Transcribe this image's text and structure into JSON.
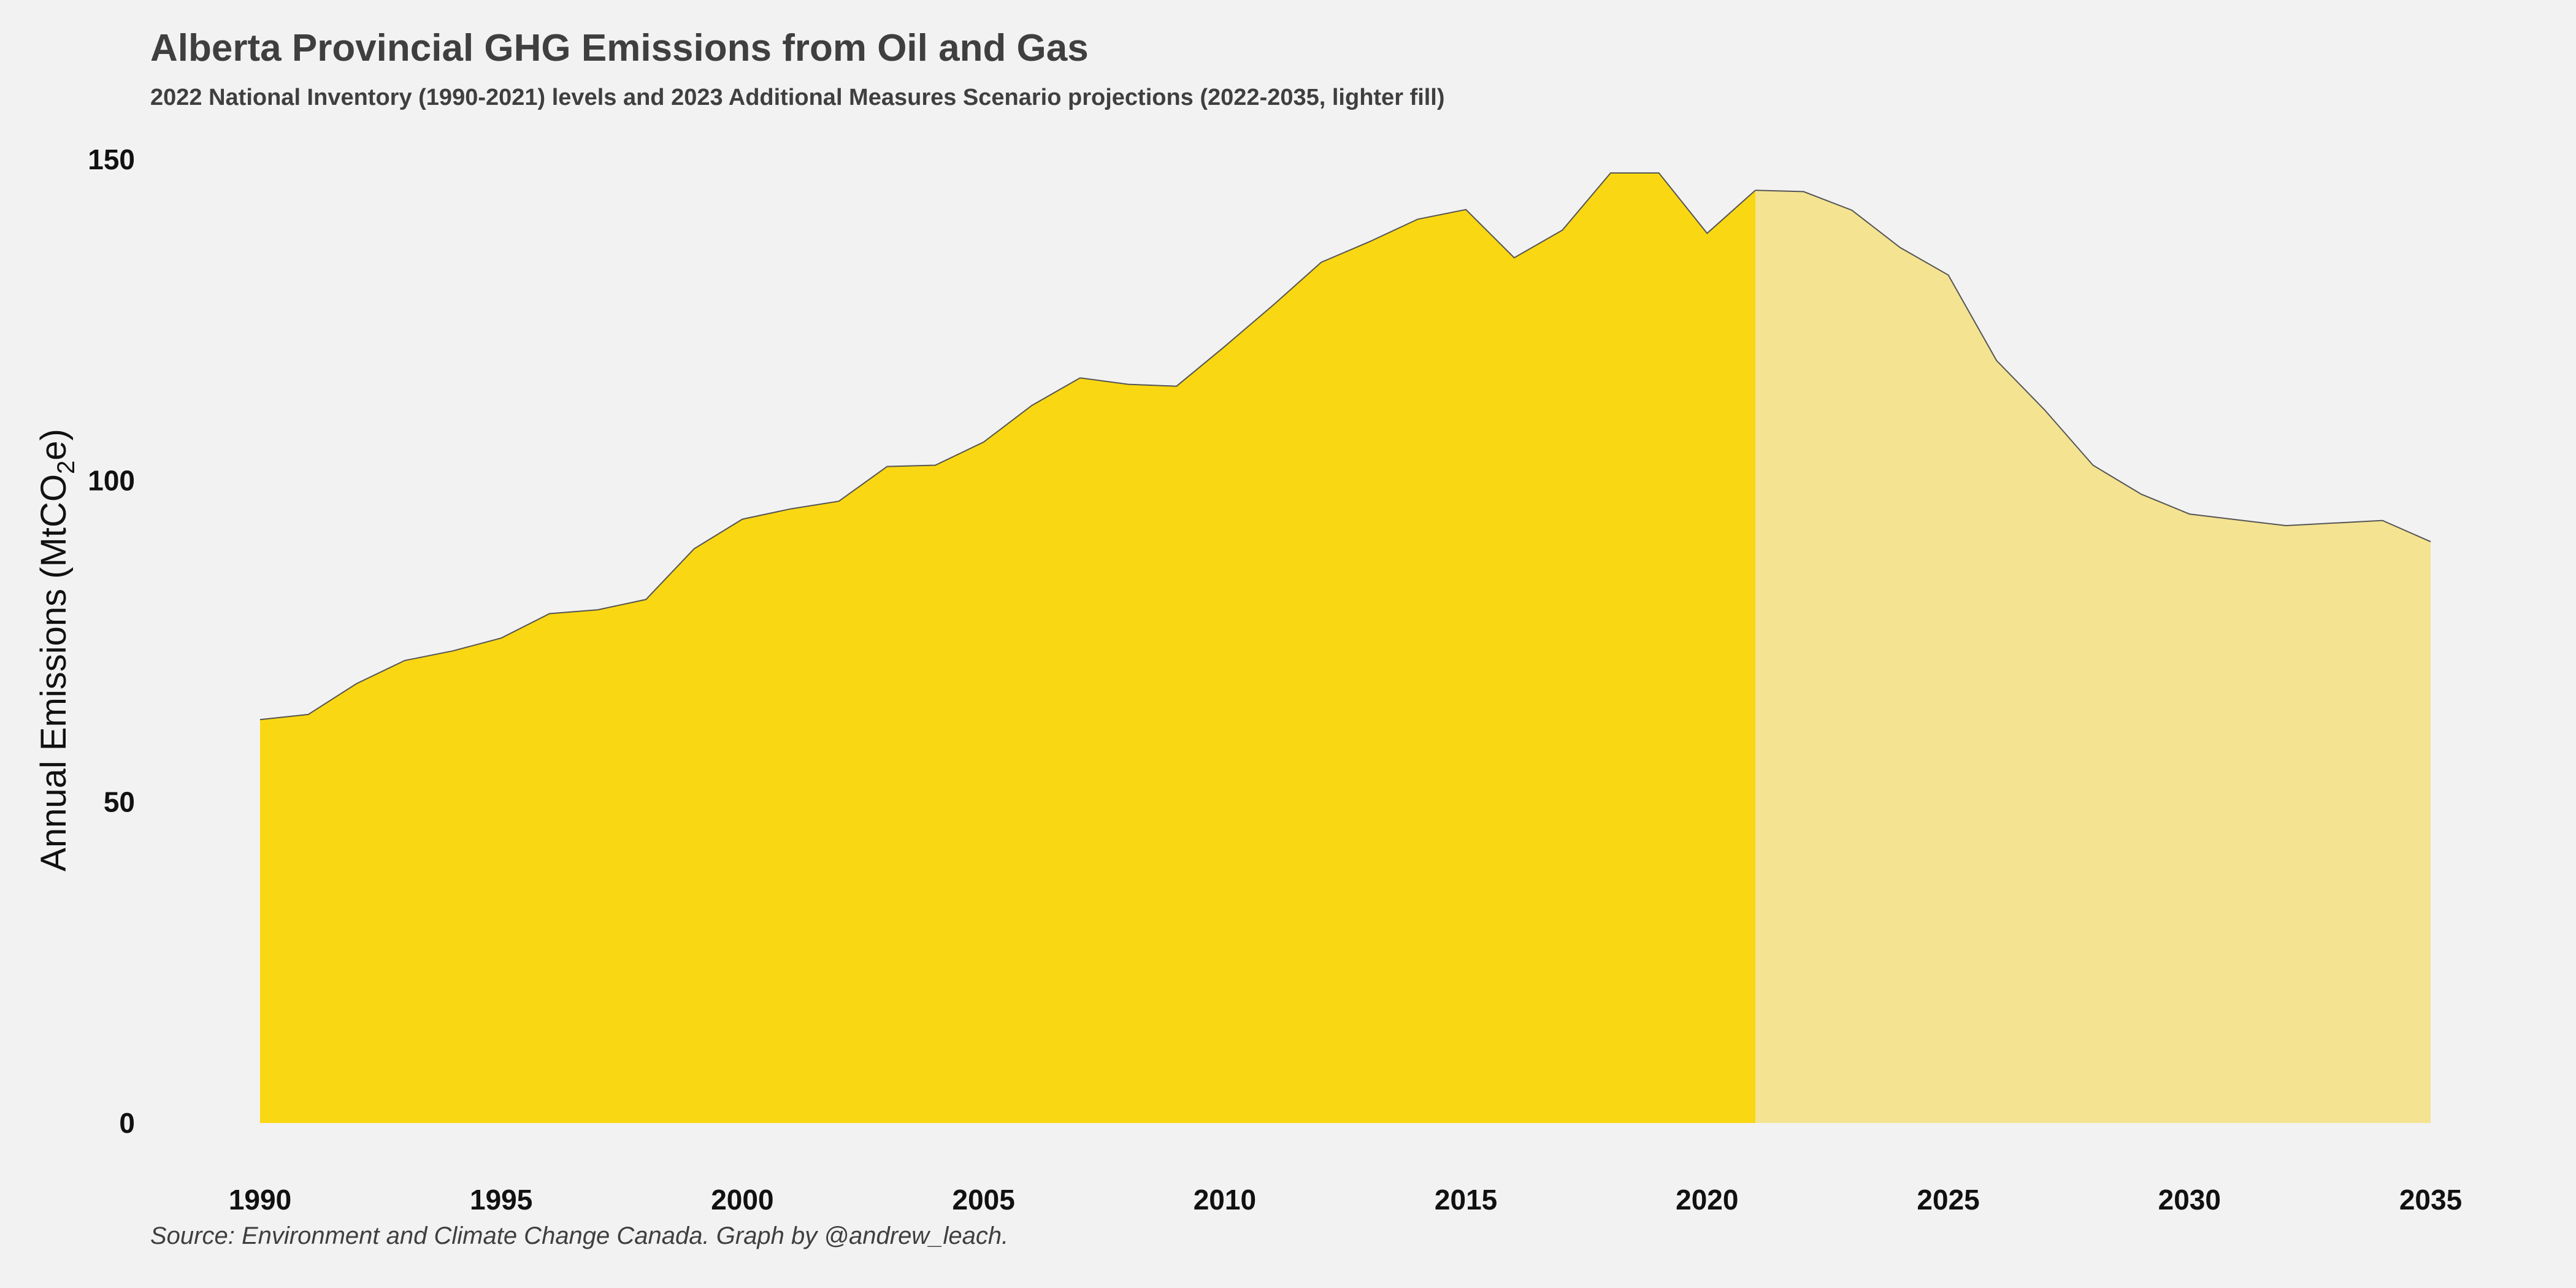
{
  "chart_data": {
    "type": "area",
    "title": "Alberta Provincial GHG Emissions from Oil and Gas",
    "subtitle": "2022 National Inventory (1990-2021) levels and 2023 Additional Measures Scenario projections (2022-2035, lighter fill)",
    "caption": "Source: Environment and Climate Change Canada. Graph by @andrew_leach.",
    "xlabel": "",
    "ylabel_main": "Annual Emissions  (MtCO",
    "ylabel_sub": "2",
    "ylabel_end": "e)",
    "xlim": [
      1990,
      2035
    ],
    "ylim": [
      0,
      150
    ],
    "x_ticks": [
      1990,
      1995,
      2000,
      2005,
      2010,
      2015,
      2020,
      2025,
      2030,
      2035
    ],
    "y_ticks": [
      0,
      50,
      100,
      150
    ],
    "grid": false,
    "colors": {
      "background": "#f2f2f2",
      "historical_fill": "#fad713",
      "projection_fill": "#f4e391",
      "outline": "#555555",
      "text": "#3f3f3f"
    },
    "series": [
      {
        "name": "2022 National Inventory",
        "x": [
          1990,
          1991,
          1992,
          1993,
          1994,
          1995,
          1996,
          1997,
          1998,
          1999,
          2000,
          2001,
          2002,
          2003,
          2004,
          2005,
          2006,
          2007,
          2008,
          2009,
          2010,
          2011,
          2012,
          2013,
          2014,
          2015,
          2016,
          2017,
          2018,
          2019,
          2020,
          2021
        ],
        "values": [
          62.8,
          63.6,
          68.4,
          72.0,
          73.5,
          75.5,
          79.3,
          79.9,
          81.5,
          89.4,
          94.0,
          95.6,
          96.8,
          102.2,
          102.4,
          106.0,
          111.7,
          116.0,
          115.0,
          114.7,
          120.9,
          127.3,
          134.0,
          137.2,
          140.7,
          142.2,
          134.7,
          139.0,
          147.9,
          147.9,
          138.5,
          145.2
        ]
      },
      {
        "name": "2023 Additional Measures Scenario projections",
        "x": [
          2021,
          2022,
          2023,
          2024,
          2025,
          2026,
          2027,
          2028,
          2029,
          2030,
          2031,
          2032,
          2033,
          2034,
          2035
        ],
        "values": [
          145.2,
          145.0,
          142.1,
          136.3,
          132.0,
          118.7,
          111.0,
          102.4,
          97.9,
          94.8,
          93.9,
          93.0,
          93.4,
          93.8,
          90.5
        ]
      }
    ]
  }
}
